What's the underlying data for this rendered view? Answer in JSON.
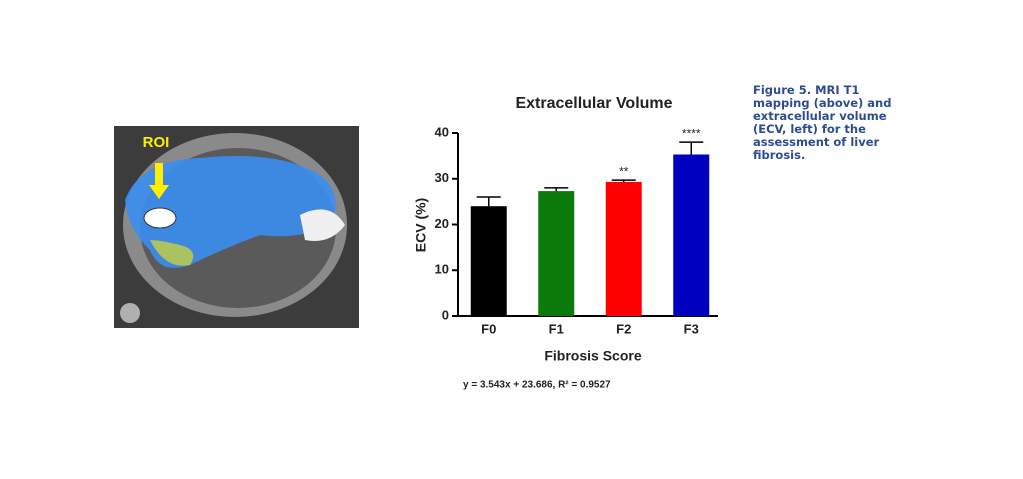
{
  "chart_data": {
    "type": "bar",
    "title": "Extracellular Volume",
    "x_label": "Fibrosis Score",
    "y_label": "ECV (%)",
    "categories": [
      "F0",
      "F1",
      "F2",
      "F3"
    ],
    "values": [
      24,
      27.3,
      29.3,
      35.3
    ],
    "errors": [
      2,
      0.7,
      0.4,
      2.7
    ],
    "colors": [
      "#000000",
      "#0a7a0a",
      "#ff0000",
      "#0000c0"
    ],
    "significance": [
      null,
      null,
      "**",
      "****"
    ],
    "equation": "y = 3.543x + 23.686, R² = 0.9527",
    "ylim": [
      0,
      40
    ],
    "yticks": [
      0,
      10,
      20,
      30,
      40
    ]
  },
  "image_label": "ROI",
  "figure_caption": "Figure 5. MRI T1 mapping (above) and extracellular volume (ECV, left) for the assessment of liver fibrosis."
}
